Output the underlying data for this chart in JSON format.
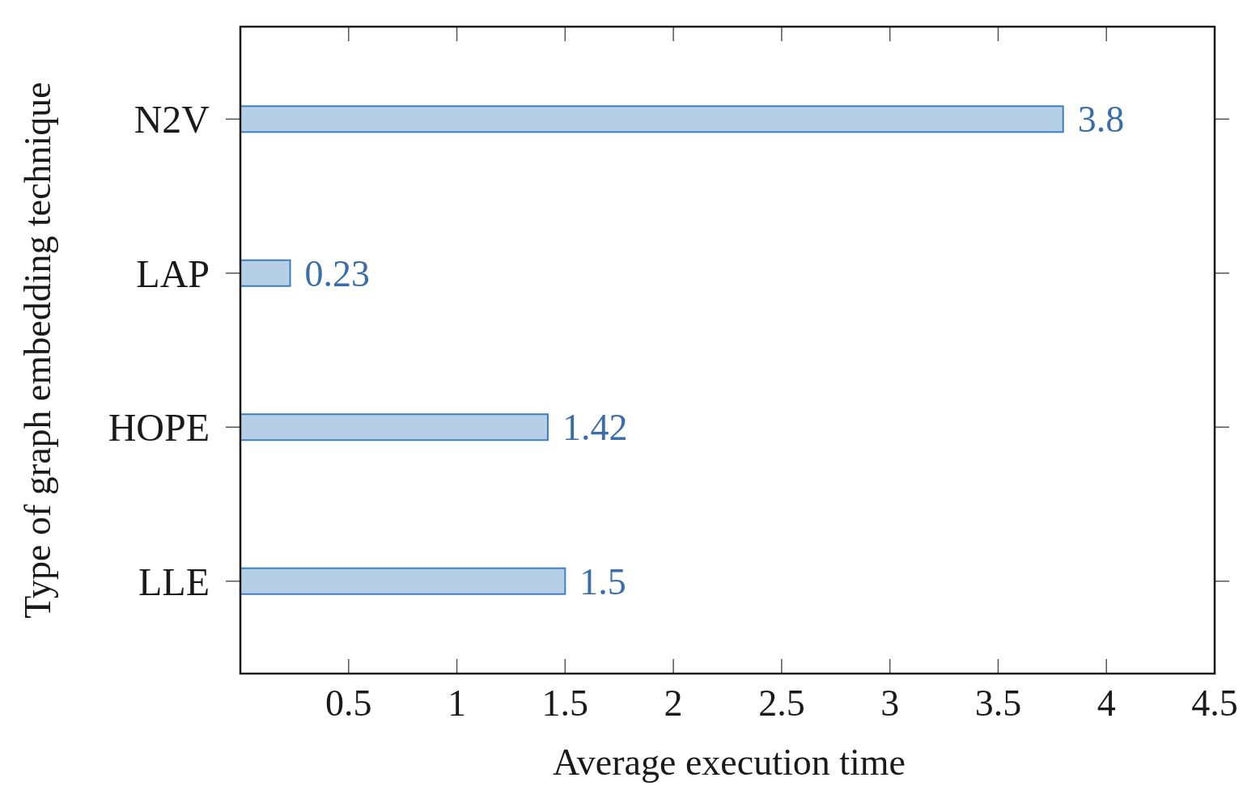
{
  "chart_data": {
    "type": "bar",
    "orientation": "horizontal",
    "categories": [
      "N2V",
      "LAP",
      "HOPE",
      "LLE"
    ],
    "values": [
      3.8,
      0.23,
      1.42,
      1.5
    ],
    "color": "#b5cfe6",
    "xlim": [
      0,
      4.5
    ],
    "xticks": [
      0.5,
      1,
      1.5,
      2,
      2.5,
      3,
      3.5,
      4,
      4.5
    ],
    "xlabel": "Average execution time",
    "ylabel": "Type of graph embedding technique",
    "data_labels": true
  }
}
